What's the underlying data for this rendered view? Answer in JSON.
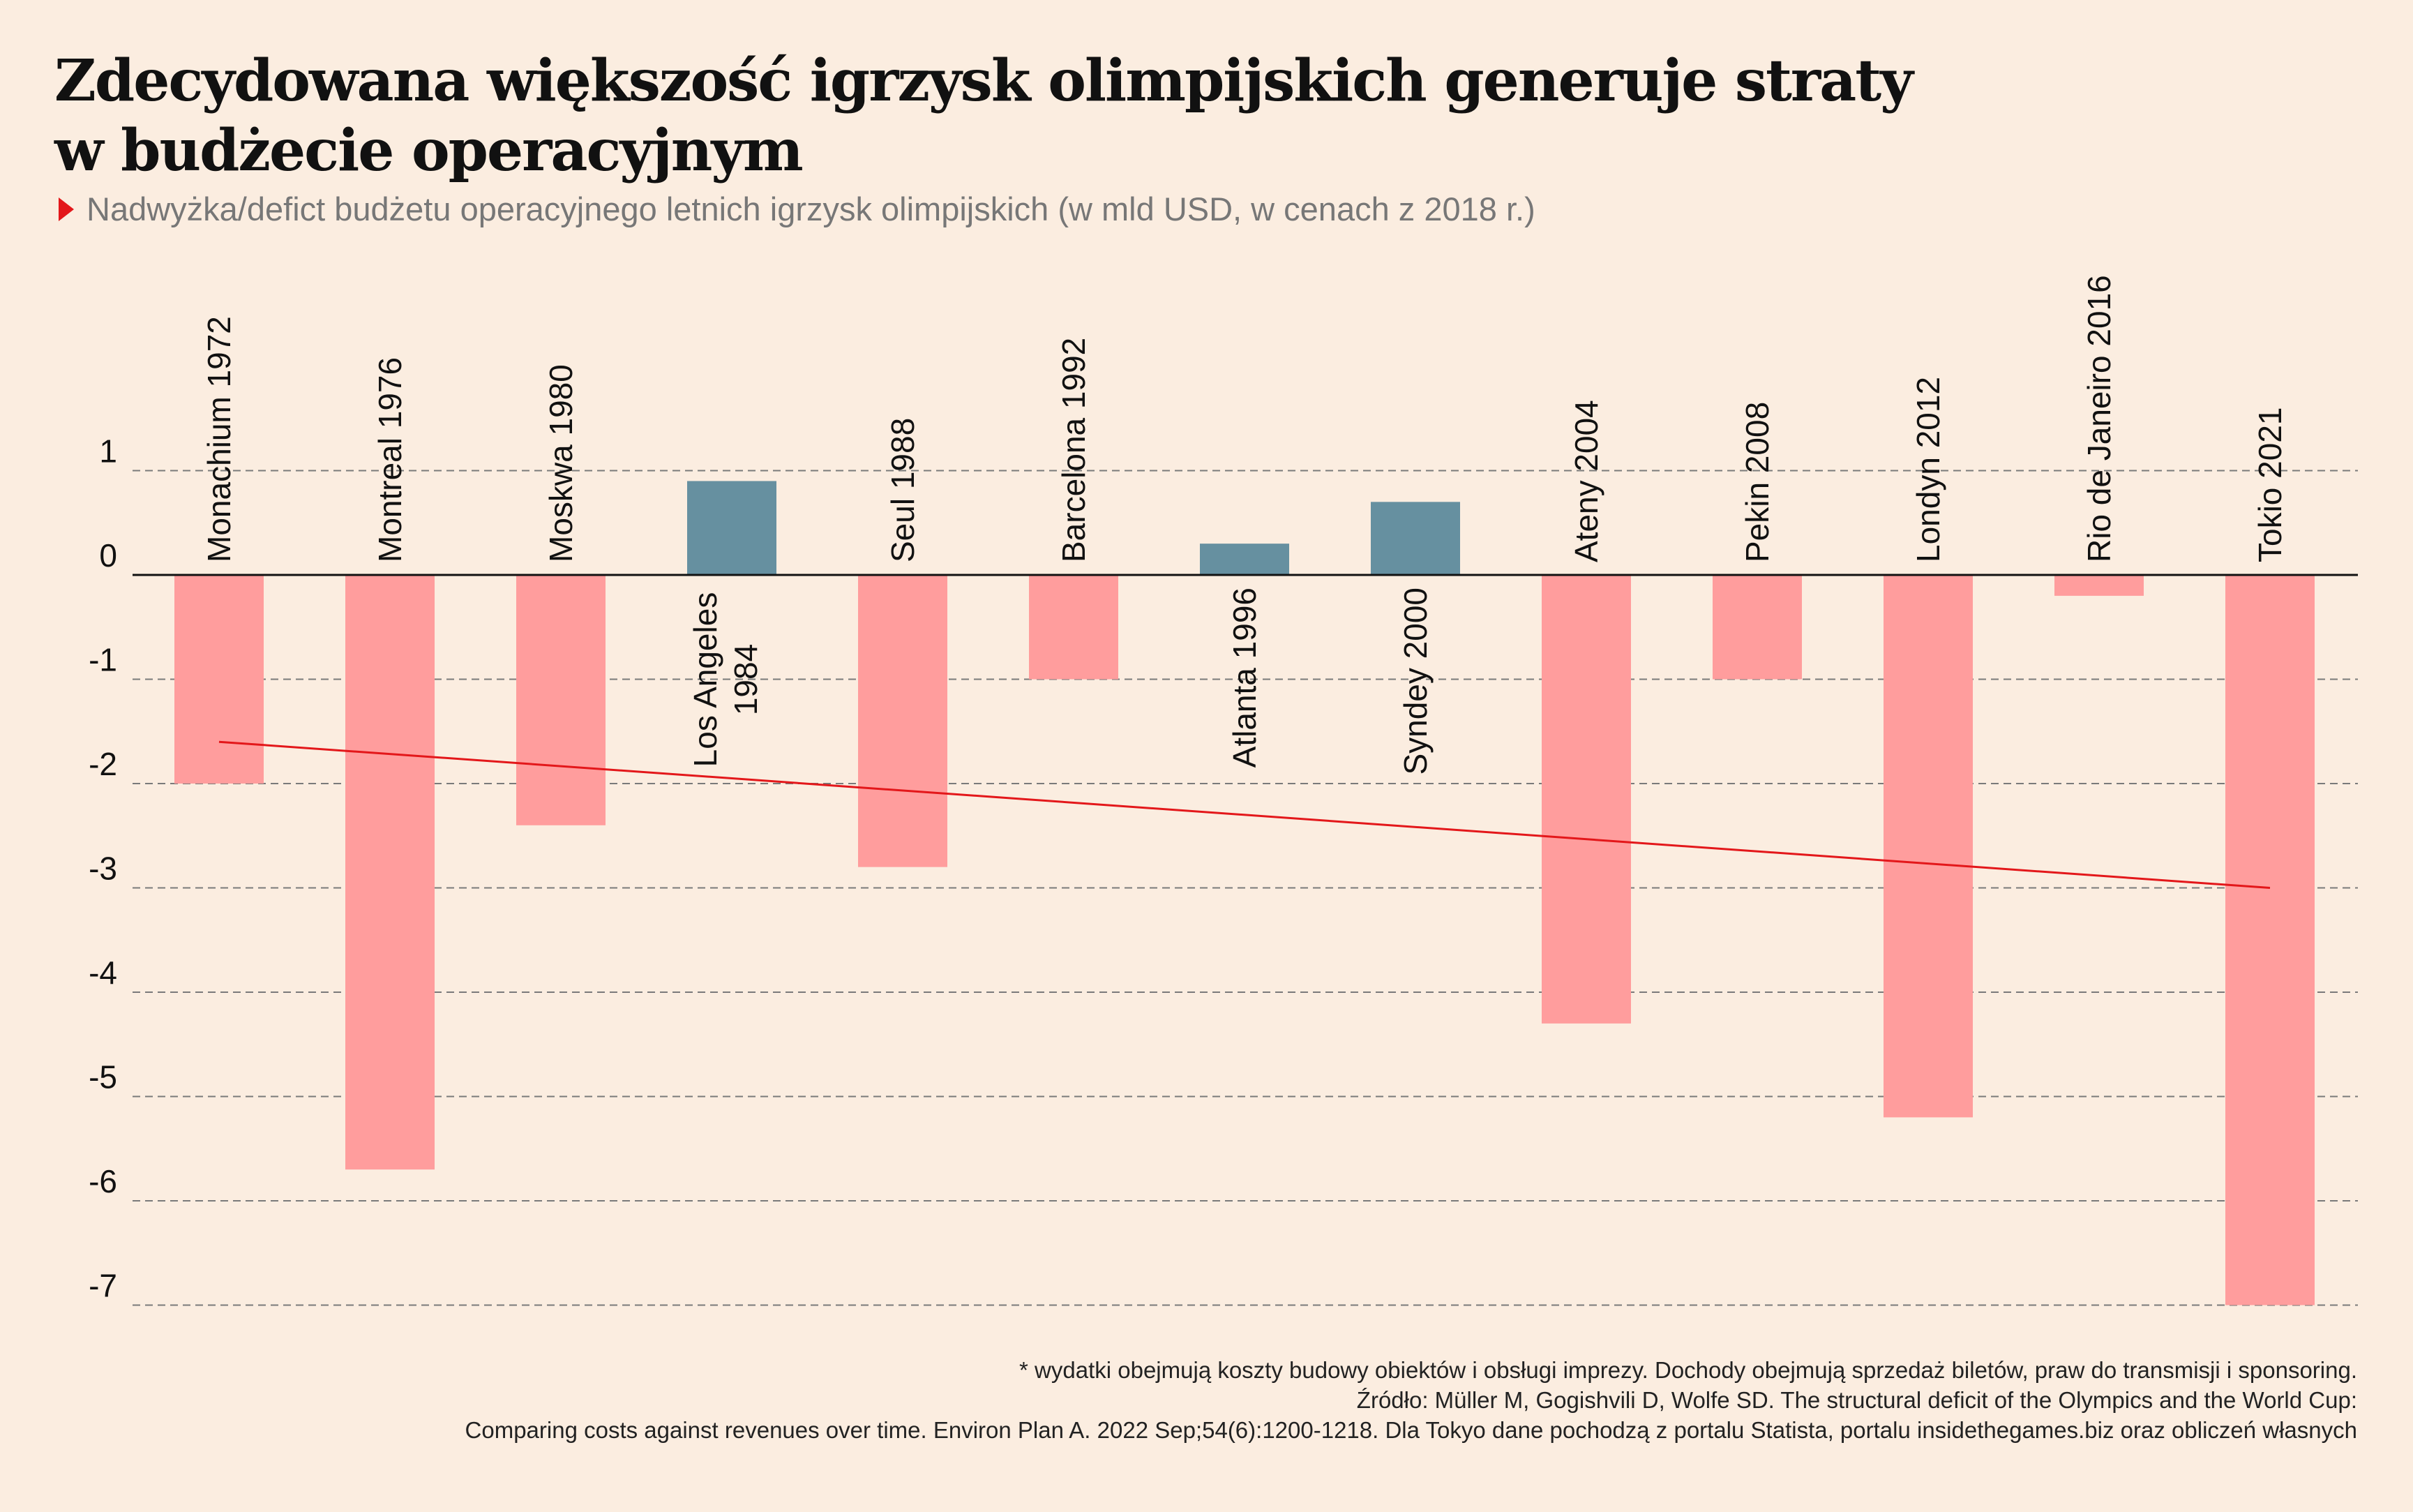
{
  "title_line1": "Zdecydowana większość igrzysk olimpijskich generuje straty",
  "title_line2": "w budżecie operacyjnym",
  "subtitle": "Nadwyżka/defict budżetu operacyjnego letnich igrzysk olimpijskich (w mld USD, w cenach z 2018 r.)",
  "footnote": "* wydatki obejmują koszty budowy obiektów i obsługi imprezy. Dochody obejmują sprzedaż biletów, praw do transmisji i sponsoring.",
  "source_line1": "Źródło: Müller M, Gogishvili D, Wolfe SD. The structural deficit of the Olympics and the World Cup:",
  "source_line2": "Comparing costs against revenues over time. Environ Plan A. 2022 Sep;54(6):1200-1218. Dla Tokyo dane pochodzą z portalu Statista, portalu insidethegames.biz oraz obliczeń własnych",
  "colors": {
    "negative": "#ff9d9d",
    "positive": "#6690a0",
    "trend": "#e3171a",
    "grid": "#7a7a7a",
    "background": "#fbede0"
  },
  "chart_data": {
    "type": "bar",
    "categories": [
      "Monachium 1972",
      "Montreal 1976",
      "Moskwa 1980",
      "Los Angeles 1984",
      "Seul 1988",
      "Barcelona 1992",
      "Atlanta 1996",
      "Syndey 2000",
      "Ateny 2004",
      "Pekin 2008",
      "Londyn 2012",
      "Rio de Janeiro 2016",
      "Tokio 2021"
    ],
    "label_lines": [
      [
        "Monachium 1972"
      ],
      [
        "Montreal 1976"
      ],
      [
        "Moskwa 1980"
      ],
      [
        "Los Angeles",
        "1984"
      ],
      [
        "Seul 1988"
      ],
      [
        "Barcelona 1992"
      ],
      [
        "Atlanta 1996"
      ],
      [
        "Syndey 2000"
      ],
      [
        "Ateny 2004"
      ],
      [
        "Pekin 2008"
      ],
      [
        "Londyn 2012"
      ],
      [
        "Rio de Janeiro 2016"
      ],
      [
        "Tokio 2021"
      ]
    ],
    "values": [
      -2.0,
      -5.7,
      -2.4,
      0.9,
      -2.8,
      -1.0,
      0.3,
      0.7,
      -4.3,
      -1.0,
      -5.2,
      -0.2,
      -7.0
    ],
    "trendline": {
      "start": -1.6,
      "end": -3.0
    },
    "ylim": [
      -7,
      1
    ],
    "yticks": [
      1,
      0,
      -1,
      -2,
      -3,
      -4,
      -5,
      -6,
      -7
    ],
    "ytick_labels": [
      "1",
      "0",
      "-1",
      "-2",
      "-3",
      "-4",
      "-5",
      "-6",
      "-7"
    ],
    "grid": true,
    "legend": false,
    "xlabel": "",
    "ylabel": ""
  }
}
